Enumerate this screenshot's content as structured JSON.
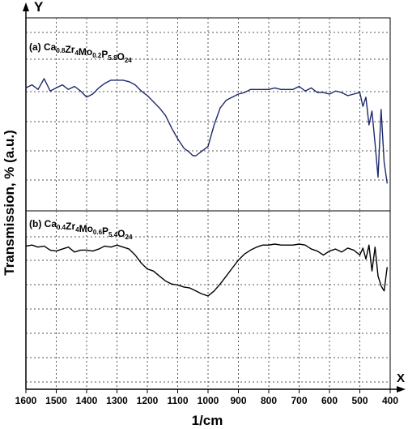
{
  "chart_data": {
    "type": "line",
    "x_axis": {
      "label": "1/cm",
      "arrow_label": "X",
      "range": [
        1600,
        400
      ],
      "ticks": [
        1600,
        1500,
        1400,
        1300,
        1200,
        1100,
        1000,
        900,
        800,
        700,
        600,
        500,
        400
      ],
      "tick_labels": [
        "1600",
        "1500",
        "1400",
        "1300",
        "1200",
        "1100",
        "1000",
        "900",
        "800",
        "700",
        "600",
        "500",
        "400"
      ]
    },
    "y_axis": {
      "label": "Transmission, % (a.u.)",
      "arrow_label": "Y"
    },
    "grid": true,
    "panels": [
      {
        "id": "a",
        "label_prefix": "(a) ",
        "formula": [
          {
            "t": "Ca",
            "sub": "0.8"
          },
          {
            "t": "Zr",
            "sub": "4"
          },
          {
            "t": "Mo",
            "sub": "0.2"
          },
          {
            "t": "P",
            "sub": "5.8"
          },
          {
            "t": "O",
            "sub": "24"
          }
        ],
        "color": "#1f2a6b",
        "y_range": [
          0,
          100
        ],
        "x": [
          1600,
          1580,
          1560,
          1540,
          1520,
          1500,
          1480,
          1460,
          1440,
          1420,
          1400,
          1380,
          1360,
          1340,
          1320,
          1300,
          1280,
          1260,
          1240,
          1220,
          1200,
          1180,
          1160,
          1140,
          1120,
          1100,
          1080,
          1060,
          1050,
          1040,
          1020,
          1000,
          980,
          960,
          940,
          920,
          900,
          880,
          860,
          840,
          820,
          800,
          780,
          760,
          740,
          720,
          700,
          680,
          660,
          640,
          620,
          600,
          580,
          560,
          540,
          520,
          500,
          490,
          480,
          470,
          460,
          450,
          440,
          430,
          420,
          410
        ],
        "y": [
          64,
          66,
          63,
          70,
          62,
          64,
          66,
          63,
          65,
          62,
          58,
          60,
          64,
          67,
          69,
          69,
          69,
          68,
          66,
          62,
          59,
          55,
          51,
          46,
          38,
          31,
          25,
          22,
          20,
          20,
          23,
          26,
          40,
          51,
          56,
          58,
          60,
          61,
          63,
          63,
          63,
          63,
          64,
          63,
          63,
          63,
          65,
          62,
          64,
          61,
          61,
          60,
          62,
          61,
          59,
          60,
          61,
          52,
          58,
          40,
          49,
          28,
          6,
          50,
          16,
          2
        ]
      },
      {
        "id": "b",
        "label_prefix": "(b) ",
        "formula": [
          {
            "t": "Ca",
            "sub": "0.4"
          },
          {
            "t": "Zr",
            "sub": "4"
          },
          {
            "t": "Mo",
            "sub": "0.6"
          },
          {
            "t": "P",
            "sub": "5.4"
          },
          {
            "t": "O",
            "sub": "24"
          }
        ],
        "color": "#000000",
        "y_range": [
          0,
          100
        ],
        "x": [
          1600,
          1580,
          1560,
          1540,
          1520,
          1500,
          1480,
          1460,
          1440,
          1420,
          1400,
          1380,
          1360,
          1340,
          1320,
          1300,
          1280,
          1260,
          1240,
          1220,
          1200,
          1180,
          1160,
          1140,
          1120,
          1100,
          1080,
          1060,
          1040,
          1020,
          1000,
          980,
          960,
          940,
          920,
          900,
          880,
          860,
          840,
          820,
          800,
          780,
          760,
          740,
          720,
          700,
          680,
          660,
          640,
          620,
          600,
          580,
          560,
          540,
          520,
          500,
          490,
          480,
          470,
          460,
          450,
          440,
          430,
          420,
          410
        ],
        "y": [
          85,
          86,
          84,
          85,
          81,
          80,
          82,
          84,
          79,
          81,
          81,
          80,
          82,
          85,
          84,
          86,
          84,
          82,
          76,
          68,
          62,
          60,
          55,
          50,
          47,
          46,
          44,
          43,
          40,
          37,
          35,
          40,
          47,
          55,
          63,
          71,
          77,
          81,
          84,
          86,
          86,
          87,
          86,
          86,
          86,
          87,
          86,
          82,
          80,
          76,
          80,
          82,
          79,
          83,
          81,
          76,
          83,
          72,
          86,
          60,
          84,
          55,
          45,
          40,
          64
        ]
      }
    ]
  }
}
